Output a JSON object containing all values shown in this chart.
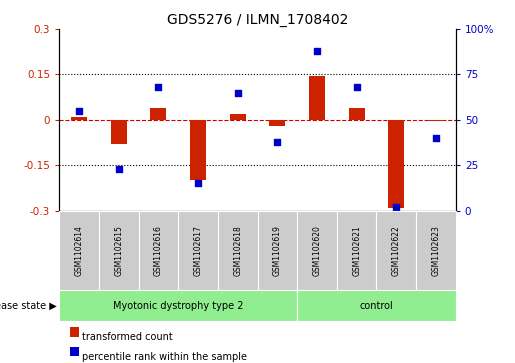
{
  "title": "GDS5276 / ILMN_1708402",
  "samples": [
    "GSM1102614",
    "GSM1102615",
    "GSM1102616",
    "GSM1102617",
    "GSM1102618",
    "GSM1102619",
    "GSM1102620",
    "GSM1102621",
    "GSM1102622",
    "GSM1102623"
  ],
  "transformed_count": [
    0.01,
    -0.08,
    0.04,
    -0.2,
    0.02,
    -0.02,
    0.145,
    0.04,
    -0.29,
    -0.005
  ],
  "percentile_rank": [
    55,
    23,
    68,
    15,
    65,
    38,
    88,
    68,
    2,
    40
  ],
  "disease_groups": [
    {
      "label": "Myotonic dystrophy type 2",
      "start": 0,
      "end": 6
    },
    {
      "label": "control",
      "start": 6,
      "end": 10
    }
  ],
  "ylim_left": [
    -0.3,
    0.3
  ],
  "ylim_right": [
    0,
    100
  ],
  "left_yticks": [
    -0.3,
    -0.15,
    0.0,
    0.15,
    0.3
  ],
  "right_yticks": [
    0,
    25,
    50,
    75,
    100
  ],
  "left_tick_labels": [
    "-0.3",
    "-0.15",
    "0",
    "0.15",
    "0.3"
  ],
  "right_tick_labels": [
    "0",
    "25",
    "50",
    "75",
    "100%"
  ],
  "hlines": [
    0.15,
    -0.15
  ],
  "bar_color": "#cc2200",
  "scatter_color": "#0000cc",
  "zero_line_color": "#cc0000",
  "legend_items": [
    {
      "label": "transformed count",
      "color": "#cc2200"
    },
    {
      "label": "percentile rank within the sample",
      "color": "#0000cc"
    }
  ],
  "disease_state_label": "disease state",
  "sample_box_color": "#cccccc",
  "group_box_color": "#90ee90",
  "bar_width": 0.4
}
